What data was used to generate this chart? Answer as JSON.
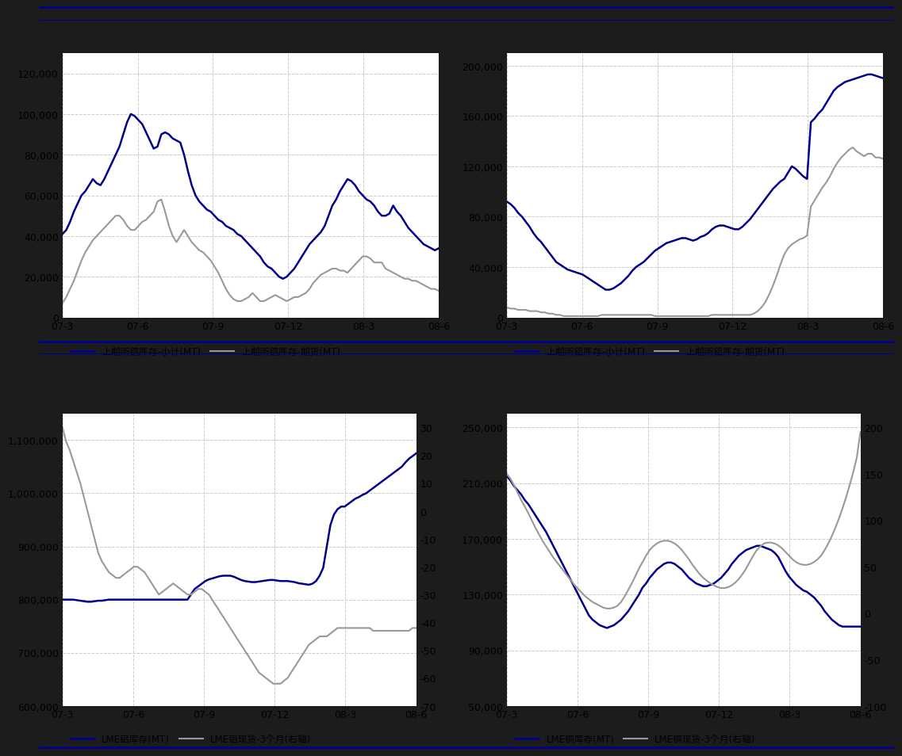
{
  "bg_color": "#1a1a2e",
  "outer_bg": "#0d0d1a",
  "panel_bg": "#ffffff",
  "blue_color": "#00008B",
  "gray_color": "#999999",
  "grid_color": "#cccccc",
  "grid_style": "--",
  "tick_fontsize": 9,
  "legend_fontsize": 8.5,
  "line_color": "#00008B",
  "xticks": [
    "07-3",
    "07-6",
    "07-9",
    "07-12",
    "08-3",
    "08-6"
  ],
  "chart1": {
    "ylim": [
      0,
      130000
    ],
    "yticks": [
      0,
      20000,
      40000,
      60000,
      80000,
      100000,
      120000
    ],
    "legend1": "上期所铜库存-小计(MT)",
    "legend2": "上期所铜库存-期货(MT)",
    "blue_x": [
      0,
      1,
      2,
      3,
      4,
      5,
      6,
      7,
      8,
      9,
      10,
      11,
      12,
      13,
      14,
      15,
      16,
      17,
      18,
      19,
      20,
      21,
      22,
      23,
      24,
      25,
      26,
      27,
      28,
      29,
      30,
      31,
      32,
      33,
      34,
      35,
      36,
      37,
      38,
      39,
      40,
      41,
      42,
      43,
      44,
      45,
      46,
      47,
      48,
      49,
      50,
      51,
      52,
      53,
      54,
      55,
      56,
      57,
      58,
      59,
      60,
      61,
      62,
      63,
      64,
      65,
      66,
      67,
      68,
      69,
      70,
      71,
      72,
      73,
      74,
      75,
      76,
      77,
      78,
      79,
      80,
      81,
      82,
      83,
      84,
      85,
      86,
      87,
      88,
      89,
      90,
      91,
      92,
      93,
      94,
      95,
      96,
      97,
      98,
      99
    ],
    "blue_y": [
      41000,
      43000,
      47000,
      52000,
      56000,
      60000,
      62000,
      65000,
      68000,
      66000,
      65000,
      68000,
      72000,
      76000,
      80000,
      84000,
      90000,
      96000,
      100000,
      99000,
      97000,
      95000,
      91000,
      87000,
      83000,
      84000,
      90000,
      91000,
      90000,
      88000,
      87000,
      86000,
      80000,
      72000,
      65000,
      60000,
      57000,
      55000,
      53000,
      52000,
      50000,
      48000,
      47000,
      45000,
      44000,
      43000,
      41000,
      40000,
      38000,
      36000,
      34000,
      32000,
      30000,
      27000,
      25000,
      24000,
      22000,
      20000,
      19000,
      20000,
      22000,
      24000,
      27000,
      30000,
      33000,
      36000,
      38000,
      40000,
      42000,
      45000,
      50000,
      55000,
      58000,
      62000,
      65000,
      68000,
      67000,
      65000,
      62000,
      60000,
      58000,
      57000,
      55000,
      52000,
      50000,
      50000,
      51000,
      55000,
      52000,
      50000,
      47000,
      44000,
      42000,
      40000,
      38000,
      36000,
      35000,
      34000,
      33000,
      34000
    ],
    "gray_x": [
      0,
      1,
      2,
      3,
      4,
      5,
      6,
      7,
      8,
      9,
      10,
      11,
      12,
      13,
      14,
      15,
      16,
      17,
      18,
      19,
      20,
      21,
      22,
      23,
      24,
      25,
      26,
      27,
      28,
      29,
      30,
      31,
      32,
      33,
      34,
      35,
      36,
      37,
      38,
      39,
      40,
      41,
      42,
      43,
      44,
      45,
      46,
      47,
      48,
      49,
      50,
      51,
      52,
      53,
      54,
      55,
      56,
      57,
      58,
      59,
      60,
      61,
      62,
      63,
      64,
      65,
      66,
      67,
      68,
      69,
      70,
      71,
      72,
      73,
      74,
      75,
      76,
      77,
      78,
      79,
      80,
      81,
      82,
      83,
      84,
      85,
      86,
      87,
      88,
      89,
      90,
      91,
      92,
      93,
      94,
      95,
      96,
      97,
      98,
      99
    ],
    "gray_y": [
      7000,
      10000,
      14000,
      18000,
      23000,
      28000,
      32000,
      35000,
      38000,
      40000,
      42000,
      44000,
      46000,
      48000,
      50000,
      50000,
      48000,
      45000,
      43000,
      43000,
      45000,
      47000,
      48000,
      50000,
      52000,
      57000,
      58000,
      52000,
      45000,
      40000,
      37000,
      40000,
      43000,
      40000,
      37000,
      35000,
      33000,
      32000,
      30000,
      28000,
      25000,
      22000,
      18000,
      14000,
      11000,
      9000,
      8000,
      8000,
      9000,
      10000,
      12000,
      10000,
      8000,
      8000,
      9000,
      10000,
      11000,
      10000,
      9000,
      8000,
      9000,
      10000,
      10000,
      11000,
      12000,
      14000,
      17000,
      19000,
      21000,
      22000,
      23000,
      24000,
      24000,
      23000,
      23000,
      22000,
      24000,
      26000,
      28000,
      30000,
      30000,
      29000,
      27000,
      27000,
      27000,
      24000,
      23000,
      22000,
      21000,
      20000,
      19000,
      19000,
      18000,
      18000,
      17000,
      16000,
      15000,
      14000,
      14000,
      13000
    ]
  },
  "chart2": {
    "ylim": [
      0,
      210000
    ],
    "yticks": [
      0,
      40000,
      80000,
      120000,
      160000,
      200000
    ],
    "legend1": "上期所铝库存-小计(MT)",
    "legend2": "上期所铝库存-期货(MT)",
    "blue_x": [
      0,
      1,
      2,
      3,
      4,
      5,
      6,
      7,
      8,
      9,
      10,
      11,
      12,
      13,
      14,
      15,
      16,
      17,
      18,
      19,
      20,
      21,
      22,
      23,
      24,
      25,
      26,
      27,
      28,
      29,
      30,
      31,
      32,
      33,
      34,
      35,
      36,
      37,
      38,
      39,
      40,
      41,
      42,
      43,
      44,
      45,
      46,
      47,
      48,
      49,
      50,
      51,
      52,
      53,
      54,
      55,
      56,
      57,
      58,
      59,
      60,
      61,
      62,
      63,
      64,
      65,
      66,
      67,
      68,
      69,
      70,
      71,
      72,
      73,
      74,
      75,
      76,
      77,
      78,
      79,
      80,
      81,
      82,
      83,
      84,
      85,
      86,
      87,
      88,
      89,
      90,
      91,
      92,
      93,
      94,
      95,
      96,
      97,
      98,
      99
    ],
    "blue_y": [
      92000,
      90000,
      87000,
      83000,
      80000,
      76000,
      72000,
      67000,
      63000,
      60000,
      56000,
      52000,
      48000,
      44000,
      42000,
      40000,
      38000,
      37000,
      36000,
      35000,
      34000,
      32000,
      30000,
      28000,
      26000,
      24000,
      22000,
      22000,
      23000,
      25000,
      27000,
      30000,
      33000,
      37000,
      40000,
      42000,
      44000,
      47000,
      50000,
      53000,
      55000,
      57000,
      59000,
      60000,
      61000,
      62000,
      63000,
      63000,
      62000,
      61000,
      62000,
      64000,
      65000,
      67000,
      70000,
      72000,
      73000,
      73000,
      72000,
      71000,
      70000,
      70000,
      72000,
      75000,
      78000,
      82000,
      86000,
      90000,
      94000,
      98000,
      102000,
      105000,
      108000,
      110000,
      115000,
      120000,
      118000,
      115000,
      112000,
      110000,
      155000,
      158000,
      162000,
      165000,
      170000,
      175000,
      180000,
      183000,
      185000,
      187000,
      188000,
      189000,
      190000,
      191000,
      192000,
      193000,
      193000,
      192000,
      191000,
      190000
    ],
    "gray_x": [
      0,
      1,
      2,
      3,
      4,
      5,
      6,
      7,
      8,
      9,
      10,
      11,
      12,
      13,
      14,
      15,
      16,
      17,
      18,
      19,
      20,
      21,
      22,
      23,
      24,
      25,
      26,
      27,
      28,
      29,
      30,
      31,
      32,
      33,
      34,
      35,
      36,
      37,
      38,
      39,
      40,
      41,
      42,
      43,
      44,
      45,
      46,
      47,
      48,
      49,
      50,
      51,
      52,
      53,
      54,
      55,
      56,
      57,
      58,
      59,
      60,
      61,
      62,
      63,
      64,
      65,
      66,
      67,
      68,
      69,
      70,
      71,
      72,
      73,
      74,
      75,
      76,
      77,
      78,
      79,
      80,
      81,
      82,
      83,
      84,
      85,
      86,
      87,
      88,
      89,
      90,
      91,
      92,
      93,
      94,
      95,
      96,
      97,
      98,
      99
    ],
    "gray_y": [
      8000,
      7000,
      7000,
      6000,
      6000,
      6000,
      5000,
      5000,
      5000,
      4000,
      4000,
      3000,
      3000,
      2000,
      2000,
      1000,
      1000,
      1000,
      1000,
      1000,
      1000,
      1000,
      1000,
      1000,
      1000,
      2000,
      2000,
      2000,
      2000,
      2000,
      2000,
      2000,
      2000,
      2000,
      2000,
      2000,
      2000,
      2000,
      2000,
      1000,
      1000,
      1000,
      1000,
      1000,
      1000,
      1000,
      1000,
      1000,
      1000,
      1000,
      1000,
      1000,
      1000,
      1000,
      2000,
      2000,
      2000,
      2000,
      2000,
      2000,
      2000,
      2000,
      2000,
      2000,
      2000,
      3000,
      5000,
      8000,
      12000,
      18000,
      25000,
      33000,
      42000,
      50000,
      55000,
      58000,
      60000,
      62000,
      63000,
      65000,
      88000,
      93000,
      98000,
      103000,
      107000,
      112000,
      118000,
      123000,
      127000,
      130000,
      133000,
      135000,
      132000,
      130000,
      128000,
      130000,
      130000,
      127000,
      127000,
      126000
    ]
  },
  "chart3": {
    "ylim_left": [
      600000,
      1150000
    ],
    "ylim_right": [
      -70,
      35
    ],
    "yticks_left": [
      600000,
      700000,
      800000,
      900000,
      1000000,
      1100000
    ],
    "yticks_right": [
      -70,
      -60,
      -50,
      -40,
      -30,
      -20,
      -10,
      0,
      10,
      20,
      30
    ],
    "legend1": "LME铝库存(MT)",
    "legend2": "LME铝现货-3个月(右轴)",
    "blue_x": [
      0,
      1,
      2,
      3,
      4,
      5,
      6,
      7,
      8,
      9,
      10,
      11,
      12,
      13,
      14,
      15,
      16,
      17,
      18,
      19,
      20,
      21,
      22,
      23,
      24,
      25,
      26,
      27,
      28,
      29,
      30,
      31,
      32,
      33,
      34,
      35,
      36,
      37,
      38,
      39,
      40,
      41,
      42,
      43,
      44,
      45,
      46,
      47,
      48,
      49,
      50,
      51,
      52,
      53,
      54,
      55,
      56,
      57,
      58,
      59,
      60,
      61,
      62,
      63,
      64,
      65,
      66,
      67,
      68,
      69,
      70,
      71,
      72,
      73,
      74,
      75,
      76,
      77,
      78,
      79,
      80,
      81,
      82,
      83,
      84,
      85,
      86,
      87,
      88,
      89,
      90,
      91,
      92,
      93,
      94,
      95,
      96,
      97,
      98,
      99
    ],
    "blue_y": [
      800000,
      800000,
      800000,
      800000,
      799000,
      798000,
      797000,
      796000,
      796000,
      797000,
      798000,
      798000,
      799000,
      800000,
      800000,
      800000,
      800000,
      800000,
      800000,
      800000,
      800000,
      800000,
      800000,
      800000,
      800000,
      800000,
      800000,
      800000,
      800000,
      800000,
      800000,
      800000,
      800000,
      800000,
      800000,
      800000,
      810000,
      820000,
      825000,
      830000,
      835000,
      838000,
      840000,
      842000,
      844000,
      845000,
      845000,
      845000,
      843000,
      840000,
      837000,
      835000,
      834000,
      833000,
      833000,
      834000,
      835000,
      836000,
      837000,
      837000,
      836000,
      835000,
      835000,
      835000,
      834000,
      833000,
      831000,
      830000,
      829000,
      828000,
      830000,
      835000,
      845000,
      860000,
      900000,
      940000,
      960000,
      970000,
      975000,
      975000,
      980000,
      985000,
      990000,
      993000,
      997000,
      1000000,
      1005000,
      1010000,
      1015000,
      1020000,
      1025000,
      1030000,
      1035000,
      1040000,
      1045000,
      1050000,
      1058000,
      1065000,
      1070000,
      1075000
    ],
    "gray_x": [
      0,
      1,
      2,
      3,
      4,
      5,
      6,
      7,
      8,
      9,
      10,
      11,
      12,
      13,
      14,
      15,
      16,
      17,
      18,
      19,
      20,
      21,
      22,
      23,
      24,
      25,
      26,
      27,
      28,
      29,
      30,
      31,
      32,
      33,
      34,
      35,
      36,
      37,
      38,
      39,
      40,
      41,
      42,
      43,
      44,
      45,
      46,
      47,
      48,
      49,
      50,
      51,
      52,
      53,
      54,
      55,
      56,
      57,
      58,
      59,
      60,
      61,
      62,
      63,
      64,
      65,
      66,
      67,
      68,
      69,
      70,
      71,
      72,
      73,
      74,
      75,
      76,
      77,
      78,
      79,
      80,
      81,
      82,
      83,
      84,
      85,
      86,
      87,
      88,
      89,
      90,
      91,
      92,
      93,
      94,
      95,
      96,
      97,
      98,
      99
    ],
    "gray_y": [
      30,
      25,
      22,
      18,
      14,
      10,
      5,
      0,
      -5,
      -10,
      -15,
      -18,
      -20,
      -22,
      -23,
      -24,
      -24,
      -23,
      -22,
      -21,
      -20,
      -20,
      -21,
      -22,
      -24,
      -26,
      -28,
      -30,
      -29,
      -28,
      -27,
      -26,
      -27,
      -28,
      -29,
      -30,
      -30,
      -29,
      -28,
      -28,
      -29,
      -30,
      -32,
      -34,
      -36,
      -38,
      -40,
      -42,
      -44,
      -46,
      -48,
      -50,
      -52,
      -54,
      -56,
      -58,
      -59,
      -60,
      -61,
      -62,
      -62,
      -62,
      -61,
      -60,
      -58,
      -56,
      -54,
      -52,
      -50,
      -48,
      -47,
      -46,
      -45,
      -45,
      -45,
      -44,
      -43,
      -42,
      -42,
      -42,
      -42,
      -42,
      -42,
      -42,
      -42,
      -42,
      -42,
      -43,
      -43,
      -43,
      -43,
      -43,
      -43,
      -43,
      -43,
      -43,
      -43,
      -43,
      -42,
      -42
    ]
  },
  "chart4": {
    "ylim_left": [
      50000,
      260000
    ],
    "ylim_right": [
      -100,
      215
    ],
    "yticks_left": [
      50000,
      90000,
      130000,
      170000,
      210000,
      250000
    ],
    "yticks_right": [
      -100,
      -50,
      0,
      50,
      100,
      150,
      200
    ],
    "legend1": "LME铜库存(MT)",
    "legend2": "LME铜现货-3个月(右轴)",
    "blue_x": [
      0,
      1,
      2,
      3,
      4,
      5,
      6,
      7,
      8,
      9,
      10,
      11,
      12,
      13,
      14,
      15,
      16,
      17,
      18,
      19,
      20,
      21,
      22,
      23,
      24,
      25,
      26,
      27,
      28,
      29,
      30,
      31,
      32,
      33,
      34,
      35,
      36,
      37,
      38,
      39,
      40,
      41,
      42,
      43,
      44,
      45,
      46,
      47,
      48,
      49,
      50,
      51,
      52,
      53,
      54,
      55,
      56,
      57,
      58,
      59,
      60,
      61,
      62,
      63,
      64,
      65,
      66,
      67,
      68,
      69,
      70,
      71,
      72,
      73,
      74,
      75,
      76,
      77,
      78,
      79,
      80,
      81,
      82,
      83,
      84,
      85,
      86,
      87,
      88,
      89,
      90,
      91,
      92,
      93,
      94,
      95,
      96,
      97,
      98,
      99
    ],
    "blue_y": [
      215000,
      212000,
      208000,
      205000,
      202000,
      198000,
      195000,
      191000,
      187000,
      183000,
      179000,
      175000,
      170000,
      165000,
      160000,
      155000,
      150000,
      145000,
      140000,
      135000,
      130000,
      125000,
      120000,
      115000,
      112000,
      110000,
      108000,
      107000,
      106000,
      107000,
      108000,
      110000,
      112000,
      115000,
      118000,
      122000,
      126000,
      130000,
      135000,
      138000,
      142000,
      145000,
      148000,
      150000,
      152000,
      153000,
      153000,
      152000,
      150000,
      148000,
      145000,
      142000,
      140000,
      138000,
      137000,
      136000,
      136000,
      137000,
      138000,
      140000,
      142000,
      145000,
      148000,
      152000,
      155000,
      158000,
      160000,
      162000,
      163000,
      164000,
      165000,
      165000,
      164000,
      163000,
      162000,
      160000,
      157000,
      152000,
      147000,
      143000,
      140000,
      137000,
      135000,
      133000,
      132000,
      130000,
      128000,
      125000,
      122000,
      118000,
      115000,
      112000,
      110000,
      108000,
      107000,
      107000,
      107000,
      107000,
      107000,
      107000
    ],
    "gray_x": [
      0,
      1,
      2,
      3,
      4,
      5,
      6,
      7,
      8,
      9,
      10,
      11,
      12,
      13,
      14,
      15,
      16,
      17,
      18,
      19,
      20,
      21,
      22,
      23,
      24,
      25,
      26,
      27,
      28,
      29,
      30,
      31,
      32,
      33,
      34,
      35,
      36,
      37,
      38,
      39,
      40,
      41,
      42,
      43,
      44,
      45,
      46,
      47,
      48,
      49,
      50,
      51,
      52,
      53,
      54,
      55,
      56,
      57,
      58,
      59,
      60,
      61,
      62,
      63,
      64,
      65,
      66,
      67,
      68,
      69,
      70,
      71,
      72,
      73,
      74,
      75,
      76,
      77,
      78,
      79,
      80,
      81,
      82,
      83,
      84,
      85,
      86,
      87,
      88,
      89,
      90,
      91,
      92,
      93,
      94,
      95,
      96,
      97,
      98,
      99
    ],
    "gray_y": [
      150,
      145,
      138,
      130,
      122,
      115,
      108,
      100,
      92,
      85,
      78,
      72,
      66,
      60,
      55,
      50,
      45,
      40,
      35,
      30,
      26,
      22,
      18,
      15,
      12,
      10,
      8,
      6,
      5,
      5,
      6,
      8,
      12,
      18,
      25,
      32,
      40,
      48,
      55,
      62,
      68,
      72,
      75,
      77,
      78,
      78,
      77,
      75,
      72,
      68,
      63,
      58,
      52,
      47,
      42,
      38,
      35,
      32,
      30,
      28,
      27,
      27,
      28,
      30,
      33,
      37,
      42,
      48,
      55,
      62,
      68,
      72,
      75,
      76,
      76,
      75,
      73,
      70,
      66,
      62,
      58,
      55,
      53,
      52,
      52,
      53,
      55,
      58,
      62,
      68,
      75,
      83,
      92,
      102,
      113,
      125,
      138,
      152,
      168,
      195
    ]
  }
}
